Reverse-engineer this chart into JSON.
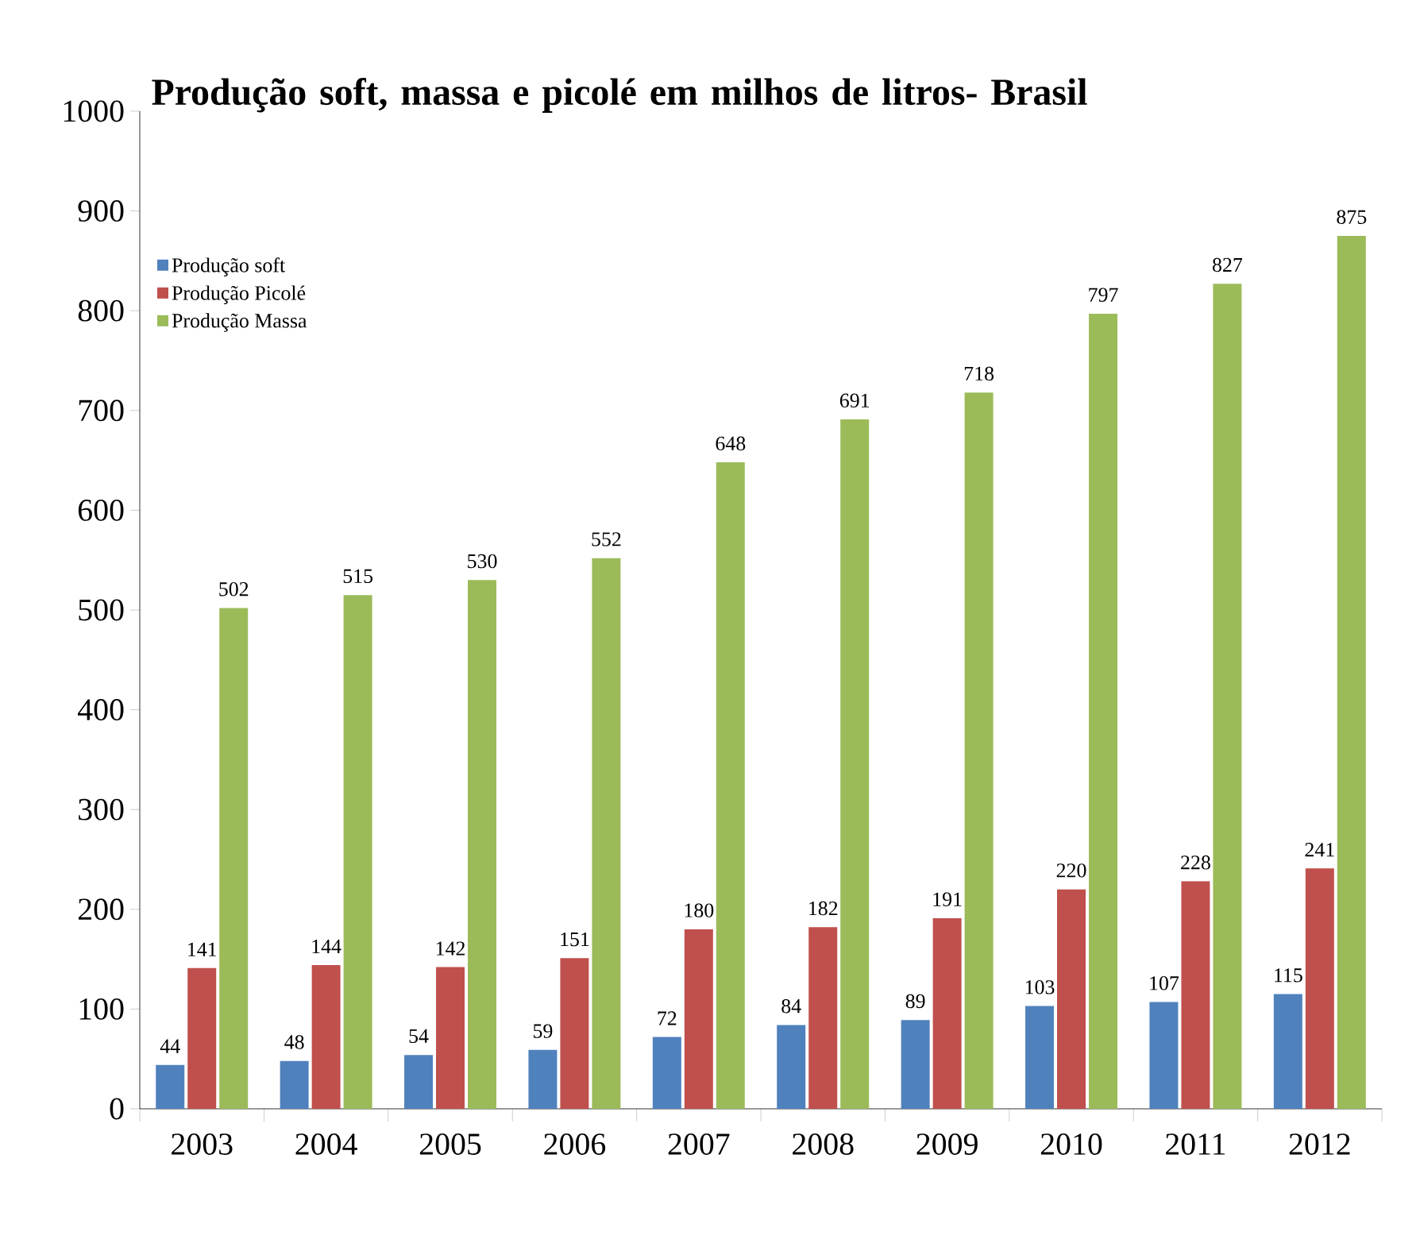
{
  "chart_data": {
    "type": "bar",
    "title": "Produção soft, massa e picolé em milhos de litros- Brasil",
    "categories": [
      "2003",
      "2004",
      "2005",
      "2006",
      "2007",
      "2008",
      "2009",
      "2010",
      "2011",
      "2012"
    ],
    "series": [
      {
        "name": "Produção soft",
        "color": "#4f81bd",
        "values": [
          44,
          48,
          54,
          59,
          72,
          84,
          89,
          103,
          107,
          115
        ]
      },
      {
        "name": "Produção Picolé",
        "color": "#c0504d",
        "values": [
          141,
          144,
          142,
          151,
          180,
          182,
          191,
          220,
          228,
          241
        ]
      },
      {
        "name": "Produção Massa",
        "color": "#9bbb59",
        "values": [
          502,
          515,
          530,
          552,
          648,
          691,
          718,
          797,
          827,
          875
        ]
      }
    ],
    "ylim": [
      0,
      1000
    ],
    "yticks": [
      0,
      100,
      200,
      300,
      400,
      500,
      600,
      700,
      800,
      900,
      1000
    ],
    "data_labels": true,
    "legend": "top left",
    "grid": false
  }
}
